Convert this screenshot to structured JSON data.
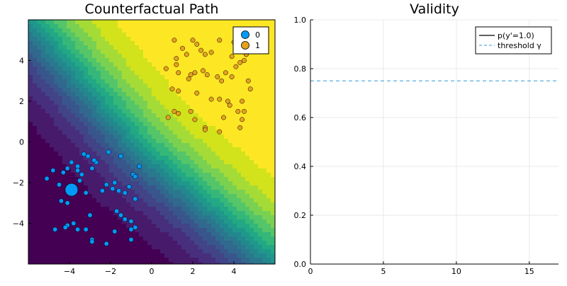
{
  "chart_data": [
    {
      "type": "scatter",
      "title": "Counterfactual Path",
      "xlabel": "",
      "ylabel": "",
      "xlim": [
        -6,
        6
      ],
      "ylim": [
        -6,
        6
      ],
      "xticks": [
        "−4",
        "−2",
        "0",
        "2",
        "4"
      ],
      "xtick_values": [
        -4,
        -2,
        0,
        2,
        4
      ],
      "yticks": [
        "−4",
        "−2",
        "0",
        "2",
        "4"
      ],
      "ytick_values": [
        -4,
        -2,
        0,
        2,
        4
      ],
      "background": "filled contour of p(y=1) from class 0 (dark purple, bottom-left) to class 1 (yellow, top-right)",
      "contour_colors": [
        "#440154",
        "#481a6c",
        "#472f7d",
        "#414487",
        "#39568c",
        "#31688e",
        "#2a788e",
        "#23888e",
        "#1f988b",
        "#22a884",
        "#35b779",
        "#54c568",
        "#7ad151",
        "#a5db36",
        "#d2e21b",
        "#fde725"
      ],
      "legend": {
        "position": "top-right",
        "entries": [
          {
            "label": "0",
            "color": "#009AF9"
          },
          {
            "label": "1",
            "color": "#E26F46"
          }
        ]
      },
      "series": [
        {
          "name": "0",
          "color": "#009AF9",
          "points": [
            [
              -5.1,
              -1.8
            ],
            [
              -4.8,
              -1.4
            ],
            [
              -4.5,
              -2.1
            ],
            [
              -4.3,
              -1.5
            ],
            [
              -4.1,
              -1.3
            ],
            [
              -3.9,
              -1.0
            ],
            [
              -3.6,
              -1.2
            ],
            [
              -3.5,
              -1.9
            ],
            [
              -3.3,
              -0.6
            ],
            [
              -3.1,
              -0.7
            ],
            [
              -3.6,
              -1.4
            ],
            [
              -3.4,
              -1.6
            ],
            [
              -2.9,
              -1.3
            ],
            [
              -2.7,
              -1.0
            ],
            [
              -2.8,
              -0.9
            ],
            [
              -2.1,
              -0.5
            ],
            [
              -1.5,
              -0.7
            ],
            [
              -0.9,
              -1.6
            ],
            [
              -0.8,
              -1.7
            ],
            [
              -0.6,
              -1.2
            ],
            [
              -2.4,
              -2.4
            ],
            [
              -2.2,
              -2.1
            ],
            [
              -1.9,
              -2.3
            ],
            [
              -1.6,
              -2.4
            ],
            [
              -1.8,
              -2.0
            ],
            [
              -1.1,
              -2.2
            ],
            [
              -1.3,
              -2.5
            ],
            [
              -0.8,
              -2.8
            ],
            [
              -3.2,
              -2.5
            ],
            [
              -4.4,
              -2.9
            ],
            [
              -4.1,
              -3.0
            ],
            [
              -1.7,
              -3.4
            ],
            [
              -3.0,
              -3.6
            ],
            [
              -1.5,
              -3.6
            ],
            [
              -1.3,
              -3.8
            ],
            [
              -1.0,
              -3.9
            ],
            [
              -0.8,
              -4.2
            ],
            [
              -4.1,
              -4.1
            ],
            [
              -3.8,
              -4.0
            ],
            [
              -3.6,
              -4.3
            ],
            [
              -3.2,
              -4.3
            ],
            [
              -4.7,
              -4.3
            ],
            [
              -4.2,
              -4.2
            ],
            [
              -1.8,
              -4.4
            ],
            [
              -1.0,
              -4.3
            ],
            [
              -2.9,
              -4.8
            ],
            [
              -2.9,
              -4.9
            ],
            [
              -2.2,
              -5.0
            ],
            [
              -1.0,
              -4.8
            ]
          ],
          "highlight": {
            "point": [
              -3.9,
              -2.35
            ],
            "note": "large marker"
          }
        },
        {
          "name": "1",
          "color": "#E26F46",
          "points": [
            [
              1.1,
              5.0
            ],
            [
              1.7,
              4.3
            ],
            [
              1.2,
              4.1
            ],
            [
              1.5,
              4.6
            ],
            [
              2.0,
              5.0
            ],
            [
              2.2,
              4.8
            ],
            [
              2.6,
              4.3
            ],
            [
              2.9,
              4.4
            ],
            [
              3.3,
              5.0
            ],
            [
              2.4,
              4.5
            ],
            [
              3.2,
              3.2
            ],
            [
              3.4,
              3.0
            ],
            [
              3.6,
              3.4
            ],
            [
              3.9,
              3.2
            ],
            [
              4.1,
              3.7
            ],
            [
              4.3,
              3.9
            ],
            [
              4.5,
              4.0
            ],
            [
              4.6,
              4.3
            ],
            [
              4.4,
              4.8
            ],
            [
              4.7,
              5.0
            ],
            [
              4.0,
              4.9
            ],
            [
              3.9,
              4.2
            ],
            [
              0.7,
              3.6
            ],
            [
              1.2,
              3.8
            ],
            [
              1.3,
              3.4
            ],
            [
              1.8,
              3.1
            ],
            [
              1.9,
              3.3
            ],
            [
              2.1,
              3.4
            ],
            [
              2.5,
              3.5
            ],
            [
              2.7,
              3.3
            ],
            [
              1.0,
              2.6
            ],
            [
              1.3,
              2.5
            ],
            [
              2.2,
              2.4
            ],
            [
              2.9,
              2.1
            ],
            [
              3.3,
              2.1
            ],
            [
              3.7,
              2.0
            ],
            [
              3.8,
              1.8
            ],
            [
              4.4,
              2.0
            ],
            [
              4.8,
              2.6
            ],
            [
              4.7,
              3.0
            ],
            [
              4.2,
              1.5
            ],
            [
              4.5,
              1.5
            ],
            [
              4.4,
              1.1
            ],
            [
              4.3,
              0.7
            ],
            [
              3.5,
              1.2
            ],
            [
              1.1,
              1.5
            ],
            [
              1.3,
              1.4
            ],
            [
              1.9,
              1.5
            ],
            [
              2.1,
              1.1
            ],
            [
              2.6,
              0.7
            ],
            [
              2.6,
              0.6
            ],
            [
              3.3,
              0.5
            ],
            [
              0.8,
              1.2
            ],
            [
              4.1,
              4.5
            ],
            [
              4.6,
              4.3
            ]
          ]
        }
      ]
    },
    {
      "type": "line",
      "title": "Validity",
      "xlabel": "",
      "ylabel": "",
      "xlim": [
        0,
        17
      ],
      "ylim": [
        0,
        1
      ],
      "xticks": [
        "0",
        "5",
        "10",
        "15"
      ],
      "xtick_values": [
        0,
        5,
        10,
        15
      ],
      "yticks": [
        "0.0",
        "0.2",
        "0.4",
        "0.6",
        "0.8",
        "1.0"
      ],
      "ytick_values": [
        0,
        0.2,
        0.4,
        0.6,
        0.8,
        1.0
      ],
      "grid": true,
      "legend": {
        "position": "top-right",
        "entries": [
          {
            "label": "p(y'=1.0)",
            "color": "#000000",
            "style": "solid"
          },
          {
            "label": "threshold γ",
            "color": "#5BAFE0",
            "style": "dashed"
          }
        ]
      },
      "series": [
        {
          "name": "p(y'=1.0)",
          "color": "#000000",
          "x": [],
          "y": []
        },
        {
          "name": "threshold γ",
          "color": "#5BAFE0",
          "style": "dashed",
          "y_constant": 0.75
        }
      ]
    }
  ]
}
